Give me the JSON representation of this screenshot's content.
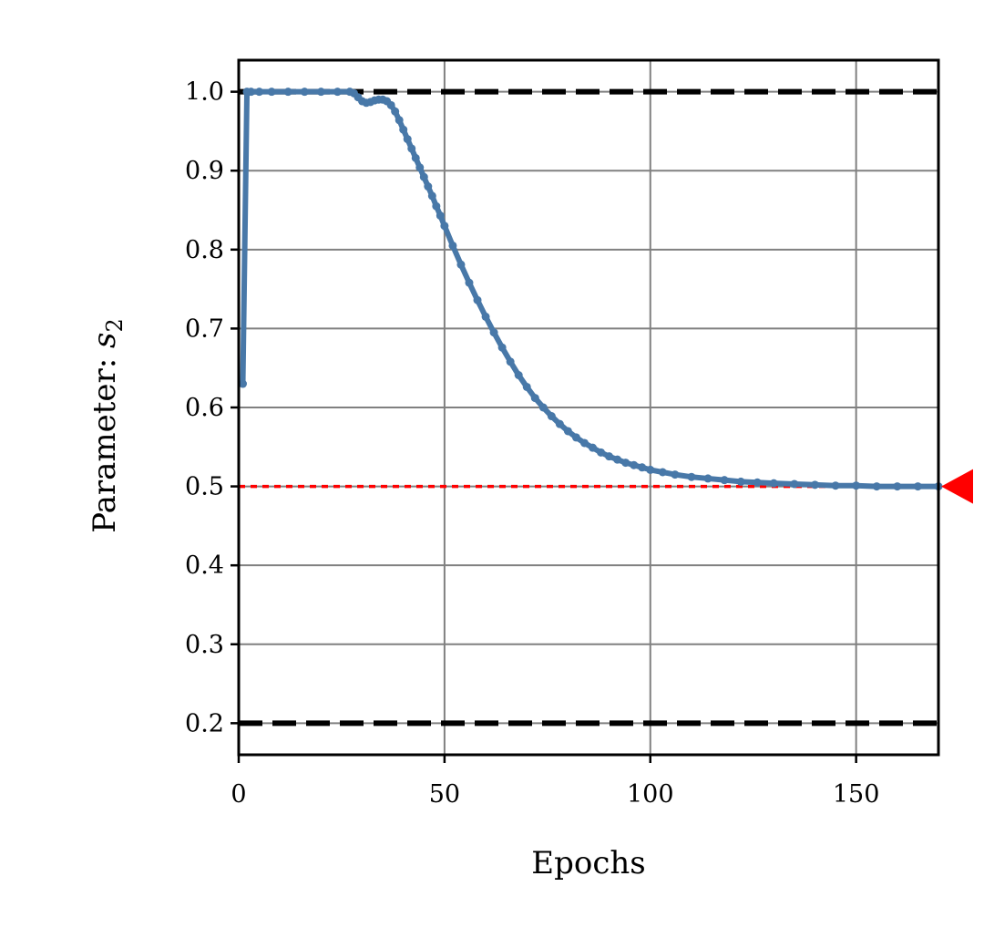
{
  "chart_data": {
    "type": "line",
    "xlabel": "Epochs",
    "ylabel": "Parameter: ",
    "ylabel_symbol": "s",
    "ylabel_subscript": "2",
    "xlim": [
      0,
      170
    ],
    "ylim": [
      0.16,
      1.04
    ],
    "xticks": [
      0,
      50,
      100,
      150
    ],
    "yticks": [
      0.2,
      0.3,
      0.4,
      0.5,
      0.6,
      0.7,
      0.8,
      0.9,
      1.0
    ],
    "xtick_labels": [
      "0",
      "50",
      "100",
      "150"
    ],
    "ytick_labels": [
      "0.2",
      "0.3",
      "0.4",
      "0.5",
      "0.6",
      "0.7",
      "0.8",
      "0.9",
      "1.0"
    ],
    "grid": true,
    "colors": {
      "series": "#4878a8",
      "bounds": "#000000",
      "target": "#ff0000",
      "grid": "#808080"
    },
    "bounds": [
      0.2,
      1.0
    ],
    "target": 0.5,
    "target_marker": "triangle-left",
    "series": [
      {
        "x": [
          1,
          2,
          3,
          5,
          8,
          12,
          16,
          20,
          24,
          27,
          28,
          29,
          30,
          31,
          32,
          33,
          34,
          35,
          36,
          37,
          38,
          39,
          40,
          41,
          42,
          43,
          44,
          45,
          46,
          47,
          48,
          49,
          50,
          52,
          54,
          56,
          58,
          60,
          62,
          64,
          66,
          68,
          70,
          72,
          74,
          76,
          78,
          80,
          82,
          84,
          86,
          88,
          90,
          92,
          94,
          96,
          98,
          100,
          103,
          106,
          110,
          114,
          118,
          122,
          126,
          130,
          135,
          140,
          145,
          150,
          155,
          160,
          165,
          170
        ],
        "y": [
          0.63,
          1.0,
          1.0,
          1.0,
          1.0,
          1.0,
          1.0,
          1.0,
          1.0,
          1.0,
          0.998,
          0.993,
          0.988,
          0.986,
          0.987,
          0.989,
          0.99,
          0.99,
          0.988,
          0.983,
          0.975,
          0.964,
          0.952,
          0.94,
          0.928,
          0.916,
          0.904,
          0.892,
          0.88,
          0.868,
          0.855,
          0.843,
          0.83,
          0.805,
          0.781,
          0.758,
          0.736,
          0.715,
          0.695,
          0.676,
          0.658,
          0.641,
          0.626,
          0.612,
          0.6,
          0.589,
          0.579,
          0.57,
          0.562,
          0.555,
          0.549,
          0.543,
          0.538,
          0.534,
          0.53,
          0.527,
          0.524,
          0.521,
          0.518,
          0.515,
          0.512,
          0.51,
          0.508,
          0.506,
          0.505,
          0.504,
          0.503,
          0.502,
          0.501,
          0.501,
          0.5,
          0.5,
          0.5,
          0.5
        ]
      }
    ]
  }
}
